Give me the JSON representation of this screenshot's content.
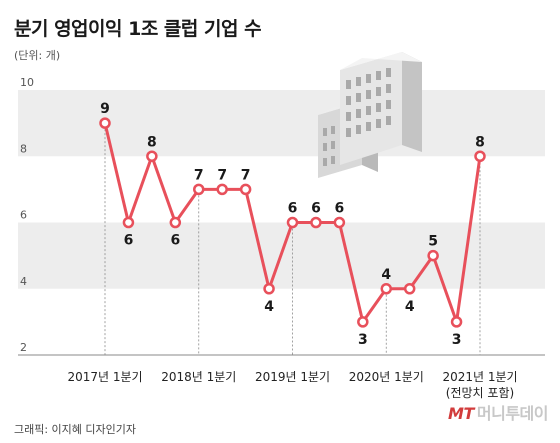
{
  "title": "분기 영업이익 1조 클럽 기업 수",
  "unit_note": "(단위: 개)",
  "credit": "그래픽: 이지혜 디자인기자",
  "logo": {
    "mark": "MT",
    "text": "머니투데이"
  },
  "colors": {
    "line": "#e8505b",
    "band": "#ededed",
    "axis": "#888888"
  },
  "chart_data": {
    "type": "line",
    "title": "분기 영업이익 1조 클럽 기업 수",
    "ylabel": "",
    "ylim": [
      2,
      10
    ],
    "yticks": [
      2,
      4,
      6,
      8,
      10
    ],
    "x": [
      "2017Q1",
      "2017Q2",
      "2017Q3",
      "2017Q4",
      "2018Q1",
      "2018Q2",
      "2018Q3",
      "2018Q4",
      "2019Q1",
      "2019Q2",
      "2019Q3",
      "2019Q4",
      "2020Q1",
      "2020Q2",
      "2020Q3",
      "2020Q4",
      "2021Q1"
    ],
    "values": [
      9,
      6,
      8,
      6,
      7,
      7,
      7,
      4,
      6,
      6,
      6,
      3,
      4,
      4,
      5,
      3,
      8
    ],
    "xtick_labels": [
      {
        "index": 0,
        "label": "2017년 1분기"
      },
      {
        "index": 4,
        "label": "2018년 1분기"
      },
      {
        "index": 8,
        "label": "2019년 1분기"
      },
      {
        "index": 12,
        "label": "2020년 1분기"
      },
      {
        "index": 16,
        "label": "2021년 1분기",
        "sublabel": "(전망치 포함)"
      }
    ],
    "grid": "alternating horizontal bands",
    "legend": "none"
  }
}
